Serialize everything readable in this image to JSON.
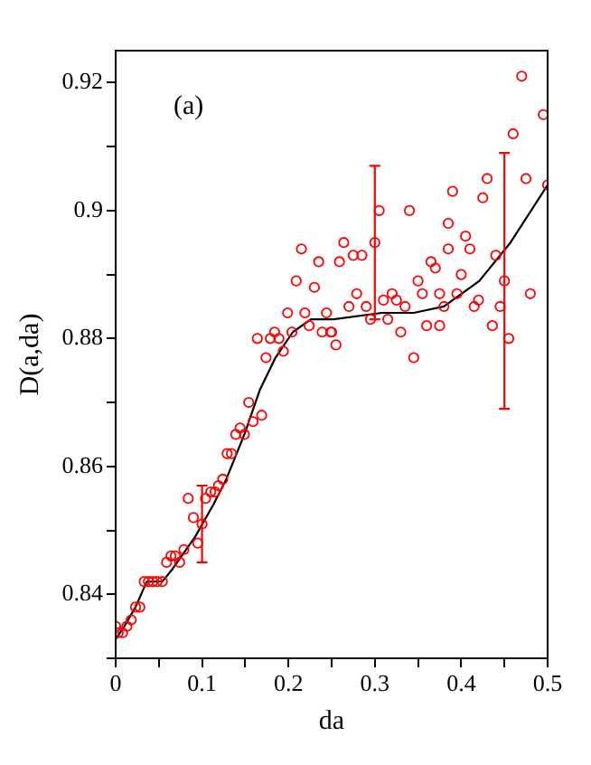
{
  "chart_data": {
    "type": "scatter",
    "xlabel": "da",
    "ylabel": "D(a,da)",
    "annotations": [
      "(a)"
    ],
    "xlim": [
      0,
      0.5
    ],
    "ylim": [
      0.83,
      0.925
    ],
    "xticks": [
      0,
      {
        "value": 0.05,
        "label": null
      },
      0.1,
      {
        "value": 0.15,
        "label": null
      },
      0.2,
      {
        "value": 0.25,
        "label": null
      },
      0.3,
      {
        "value": 0.35,
        "label": null
      },
      0.4,
      {
        "value": 0.45,
        "label": null
      },
      0.5
    ],
    "yticks": [
      {
        "value": 0.83,
        "label": null
      },
      0.84,
      {
        "value": 0.85,
        "label": null
      },
      0.86,
      {
        "value": 0.87,
        "label": null
      },
      0.88,
      {
        "value": 0.89,
        "label": null
      },
      0.9,
      {
        "value": 0.91,
        "label": null
      },
      0.92
    ],
    "series": [
      {
        "type": "scatter",
        "color": "#ff0000",
        "marker": "circle",
        "x": [
          0,
          0.003,
          0.008,
          0.013,
          0.018,
          0.023,
          0.028,
          0.033,
          0.038,
          0.043,
          0.048,
          0.054,
          0.059,
          0.064,
          0.069,
          0.074,
          0.079,
          0.084,
          0.09,
          0.095,
          0.104,
          0.11,
          0.115,
          0.119,
          0.124,
          0.129,
          0.134,
          0.139,
          0.144,
          0.149,
          0.154,
          0.159,
          0.164,
          0.169,
          0.174,
          0.179,
          0.184,
          0.189,
          0.194,
          0.199,
          0.204,
          0.209,
          0.215,
          0.219,
          0.224,
          0.23,
          0.235,
          0.239,
          0.244,
          0.249,
          0.25,
          0.255,
          0.259,
          0.264,
          0.27,
          0.275,
          0.279,
          0.285,
          0.29,
          0.295,
          0.305,
          0.31,
          0.315,
          0.32,
          0.325,
          0.33,
          0.335,
          0.34,
          0.345,
          0.35,
          0.355,
          0.36,
          0.365,
          0.37,
          0.375,
          0.375,
          0.38,
          0.385,
          0.385,
          0.39,
          0.395,
          0.4,
          0.405,
          0.41,
          0.415,
          0.42,
          0.425,
          0.43,
          0.436,
          0.44,
          0.445,
          0.455,
          0.46,
          0.47,
          0.475,
          0.48,
          0.495,
          0.5
        ],
        "values": [
          0.835,
          0.834,
          0.834,
          0.835,
          0.836,
          0.838,
          0.838,
          0.842,
          0.842,
          0.842,
          0.842,
          0.842,
          0.845,
          0.846,
          0.846,
          0.845,
          0.847,
          0.855,
          0.852,
          0.848,
          0.855,
          0.856,
          0.856,
          0.857,
          0.858,
          0.862,
          0.862,
          0.865,
          0.866,
          0.865,
          0.87,
          0.867,
          0.88,
          0.868,
          0.877,
          0.88,
          0.881,
          0.88,
          0.878,
          0.884,
          0.881,
          0.889,
          0.894,
          0.884,
          0.882,
          0.888,
          0.892,
          0.881,
          0.884,
          0.881,
          0.881,
          0.879,
          0.892,
          0.895,
          0.885,
          0.893,
          0.887,
          0.893,
          0.885,
          0.883,
          0.9,
          0.886,
          0.883,
          0.887,
          0.886,
          0.881,
          0.885,
          0.9,
          0.877,
          0.889,
          0.887,
          0.882,
          0.892,
          0.891,
          0.887,
          0.882,
          0.885,
          0.898,
          0.894,
          0.903,
          0.887,
          0.89,
          0.896,
          0.894,
          0.885,
          0.886,
          0.902,
          0.905,
          0.882,
          0.893,
          0.885,
          0.88,
          0.912,
          0.921,
          0.905,
          0.887,
          0.915,
          0.904
        ]
      },
      {
        "type": "scatter",
        "color": "#ff0000",
        "marker": "circle",
        "x": [
          0.1,
          0.3,
          0.45
        ],
        "values": [
          0.851,
          0.895,
          0.889
        ],
        "errors": [
          0.006,
          0.012,
          0.02
        ]
      },
      {
        "type": "line",
        "color": "#000000",
        "marker": "none",
        "x": [
          0,
          0.01,
          0.023,
          0.036,
          0.054,
          0.066,
          0.092,
          0.113,
          0.128,
          0.131,
          0.149,
          0.167,
          0.185,
          0.205,
          0.226,
          0.252,
          0.308,
          0.345,
          0.38,
          0.421,
          0.457,
          0.5
        ],
        "values": [
          0.833,
          0.835,
          0.838,
          0.842,
          0.842,
          0.844,
          0.849,
          0.854,
          0.858,
          0.859,
          0.865,
          0.872,
          0.877,
          0.881,
          0.883,
          0.883,
          0.884,
          0.884,
          0.885,
          0.889,
          0.895,
          0.904
        ]
      }
    ]
  }
}
